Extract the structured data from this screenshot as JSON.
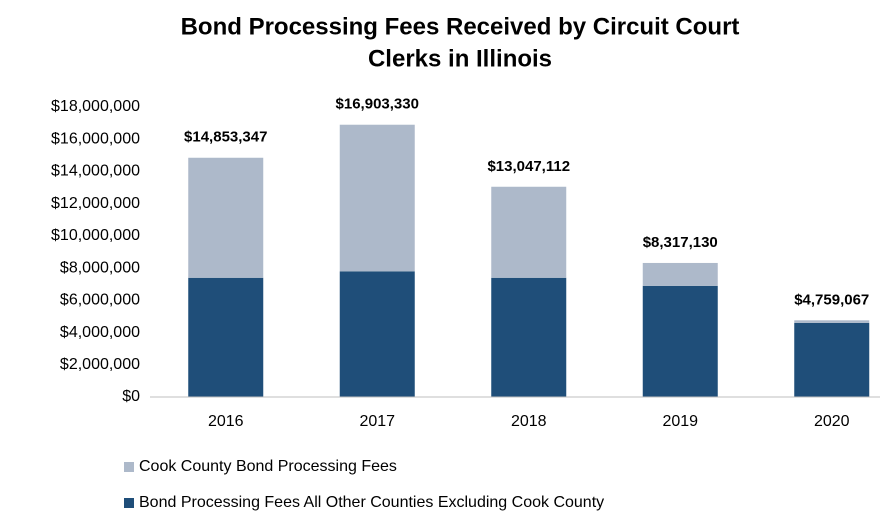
{
  "chart_data": {
    "type": "stacked_bar",
    "title": [
      "Bond Processing Fees Received by Circuit Court",
      "Clerks in Illinois"
    ],
    "categories": [
      "2016",
      "2017",
      "2018",
      "2019",
      "2020"
    ],
    "series": [
      {
        "name": "Bond Processing Fees All Other Counties Excluding Cook County",
        "color": "#1f4e79",
        "values": [
          7400000,
          7800000,
          7400000,
          6900000,
          4600000
        ]
      },
      {
        "name": "Cook County Bond Processing Fees",
        "color": "#adb9ca",
        "values": [
          7450000,
          9100000,
          5650000,
          1420000,
          160000
        ]
      }
    ],
    "totals": [
      14853347,
      16903330,
      13047112,
      8317130,
      4759067
    ],
    "total_labels": [
      "$14,853,347",
      "$16,903,330",
      "$13,047,112",
      "$8,317,130",
      "$4,759,067"
    ],
    "ylim": [
      0,
      18000000
    ],
    "yticks": [
      {
        "value": 0,
        "label": "$0"
      },
      {
        "value": 2000000,
        "label": "$2,000,000"
      },
      {
        "value": 4000000,
        "label": "$4,000,000"
      },
      {
        "value": 6000000,
        "label": "$6,000,000"
      },
      {
        "value": 8000000,
        "label": "$8,000,000"
      },
      {
        "value": 10000000,
        "label": "$10,000,000"
      },
      {
        "value": 12000000,
        "label": "$12,000,000"
      },
      {
        "value": 14000000,
        "label": "$14,000,000"
      },
      {
        "value": 16000000,
        "label": "$16,000,000"
      },
      {
        "value": 18000000,
        "label": "$18,000,000"
      }
    ],
    "grid": false,
    "legend": "bottom"
  }
}
